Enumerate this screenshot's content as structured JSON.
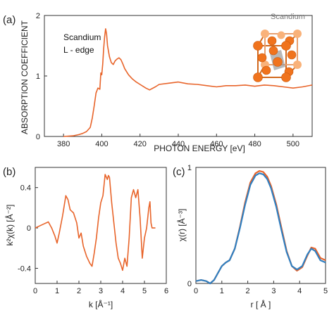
{
  "colors": {
    "line": "#e8642a",
    "line2": "#2f7fc1",
    "atom": "#f0731d",
    "atom_light": "#f9b27a",
    "cube_edge": "#d2691e"
  },
  "chart_data": [
    {
      "id": "a",
      "panel_label": "(a)",
      "type": "line",
      "xlabel": "PHOTON ENERGY [eV]",
      "ylabel": "ABSORPTION COEFFICIENT",
      "xlim": [
        370,
        510
      ],
      "ylim": [
        0,
        2
      ],
      "xticks": [
        380,
        400,
        420,
        440,
        460,
        480,
        500
      ],
      "yticks": [
        0,
        1,
        2
      ],
      "annotation_lines": [
        "Scandium",
        "L - edge"
      ],
      "inset_label": "Scandium",
      "inset_icon": "scandium-crystal-lattice-icon",
      "series": [
        {
          "x": [
            380,
            385,
            388,
            390,
            392,
            394,
            395,
            396,
            397,
            398,
            399,
            399.5,
            400,
            400.5,
            401,
            401.5,
            402,
            402.5,
            403,
            404,
            405,
            406,
            407,
            408,
            409,
            410,
            411,
            412,
            414,
            416,
            418,
            420,
            423,
            425,
            428,
            430,
            435,
            440,
            445,
            450,
            455,
            460,
            465,
            470,
            475,
            480,
            485,
            490,
            495,
            500,
            505,
            510
          ],
          "y": [
            0.0,
            0.01,
            0.03,
            0.05,
            0.08,
            0.15,
            0.3,
            0.5,
            0.72,
            0.8,
            0.78,
            1.05,
            1.02,
            1.2,
            1.45,
            1.65,
            1.78,
            1.7,
            1.5,
            1.32,
            1.22,
            1.19,
            1.25,
            1.28,
            1.3,
            1.27,
            1.2,
            1.12,
            1.02,
            0.95,
            0.9,
            0.86,
            0.8,
            0.77,
            0.82,
            0.86,
            0.88,
            0.9,
            0.87,
            0.86,
            0.84,
            0.82,
            0.84,
            0.84,
            0.85,
            0.83,
            0.85,
            0.84,
            0.82,
            0.8,
            0.82,
            0.85
          ]
        }
      ]
    },
    {
      "id": "b",
      "panel_label": "(b)",
      "type": "line",
      "xlabel": "k [Å⁻¹]",
      "ylabel": "k²χ(k) [Å⁻²]",
      "xlim": [
        0,
        6
      ],
      "ylim": [
        -0.55,
        0.6
      ],
      "xticks": [
        0,
        1,
        2,
        3,
        4,
        5,
        6
      ],
      "yticks": [
        -0.4,
        0,
        0.4
      ],
      "ytick_labels": [
        "-0.4",
        "0",
        "0.4"
      ],
      "series": [
        {
          "x": [
            0,
            0.2,
            0.4,
            0.6,
            0.75,
            0.9,
            1.0,
            1.1,
            1.25,
            1.4,
            1.5,
            1.6,
            1.75,
            1.9,
            2.0,
            2.1,
            2.2,
            2.35,
            2.5,
            2.6,
            2.7,
            2.8,
            2.9,
            3.0,
            3.1,
            3.2,
            3.3,
            3.35,
            3.4,
            3.5,
            3.6,
            3.7,
            3.8,
            3.9,
            4.0,
            4.1,
            4.2,
            4.3,
            4.4,
            4.5,
            4.6,
            4.7,
            4.8,
            4.9,
            5.0,
            5.1,
            5.2,
            5.25,
            5.3,
            5.35,
            5.5
          ],
          "y": [
            0.0,
            0.02,
            0.04,
            0.06,
            0.0,
            -0.08,
            -0.15,
            -0.05,
            0.12,
            0.32,
            0.28,
            0.18,
            0.15,
            0.05,
            -0.1,
            -0.05,
            -0.18,
            -0.28,
            -0.35,
            -0.38,
            -0.25,
            -0.1,
            0.1,
            0.25,
            0.32,
            0.53,
            0.48,
            0.52,
            0.5,
            0.25,
            0.05,
            -0.15,
            -0.3,
            -0.35,
            -0.42,
            -0.3,
            -0.38,
            -0.1,
            0.3,
            0.38,
            0.3,
            0.38,
            0.1,
            -0.3,
            -0.1,
            0.0,
            0.2,
            0.26,
            0.05,
            0.0,
            0.0
          ]
        }
      ]
    },
    {
      "id": "c",
      "panel_label": "(c)",
      "type": "line",
      "xlabel": "r [ Å ]",
      "ylabel": "χ(r) [Å⁻³]",
      "xlim": [
        0,
        5
      ],
      "ylim": [
        0,
        1
      ],
      "xticks": [
        0,
        1,
        2,
        3,
        4,
        5
      ],
      "yticks": [
        0,
        1
      ],
      "series": [
        {
          "x": [
            0,
            0.2,
            0.4,
            0.55,
            0.7,
            0.85,
            1.0,
            1.15,
            1.3,
            1.5,
            1.7,
            1.9,
            2.1,
            2.3,
            2.45,
            2.6,
            2.75,
            2.9,
            3.1,
            3.3,
            3.5,
            3.7,
            3.9,
            4.1,
            4.3,
            4.45,
            4.6,
            4.8,
            5.0
          ],
          "y": [
            0.02,
            0.03,
            0.02,
            0.0,
            0.03,
            0.09,
            0.15,
            0.18,
            0.2,
            0.3,
            0.48,
            0.68,
            0.85,
            0.93,
            0.95,
            0.94,
            0.9,
            0.82,
            0.66,
            0.46,
            0.27,
            0.15,
            0.12,
            0.15,
            0.25,
            0.3,
            0.28,
            0.2,
            0.18
          ]
        },
        {
          "x": [
            0,
            0.2,
            0.4,
            0.55,
            0.7,
            0.85,
            1.0,
            1.15,
            1.3,
            1.5,
            1.7,
            1.9,
            2.1,
            2.3,
            2.45,
            2.6,
            2.75,
            2.9,
            3.1,
            3.3,
            3.5,
            3.7,
            3.9,
            4.1,
            4.3,
            4.45,
            4.6,
            4.8,
            5.0
          ],
          "y": [
            0.02,
            0.03,
            0.02,
            0.0,
            0.03,
            0.09,
            0.15,
            0.18,
            0.2,
            0.3,
            0.49,
            0.7,
            0.87,
            0.95,
            0.97,
            0.96,
            0.92,
            0.84,
            0.68,
            0.48,
            0.28,
            0.15,
            0.11,
            0.14,
            0.24,
            0.31,
            0.3,
            0.22,
            0.2
          ]
        }
      ]
    }
  ]
}
